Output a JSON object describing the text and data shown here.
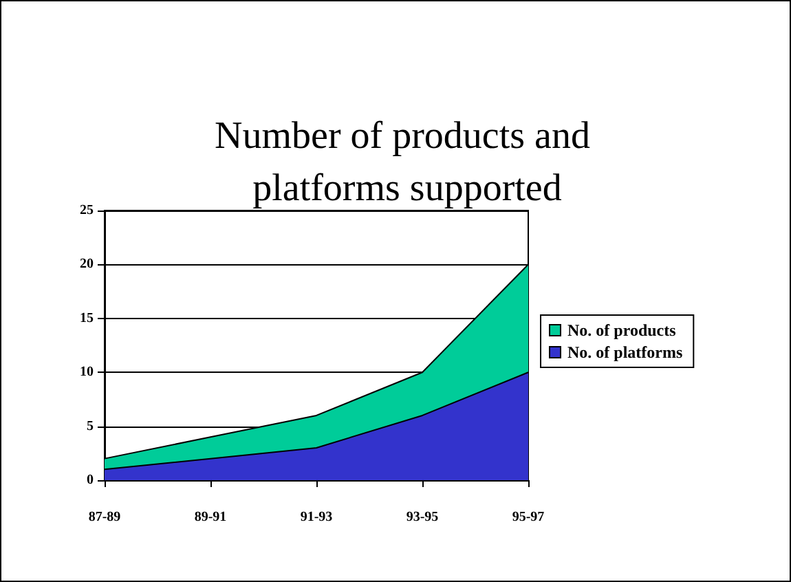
{
  "chart_data": {
    "type": "area",
    "title": "Number of products and platforms supported",
    "categories": [
      "87-89",
      "89-91",
      "91-93",
      "93-95",
      "95-97"
    ],
    "series": [
      {
        "name": "No. of products",
        "color": "#00cc99",
        "values": [
          2,
          4,
          6,
          10,
          20
        ]
      },
      {
        "name": "No. of platforms",
        "color": "#3333cc",
        "values": [
          1,
          2,
          3,
          6,
          10
        ]
      }
    ],
    "ylim": [
      0,
      25
    ],
    "yticks": [
      0,
      5,
      10,
      15,
      20,
      25
    ],
    "grid": "y",
    "legend": "right"
  }
}
